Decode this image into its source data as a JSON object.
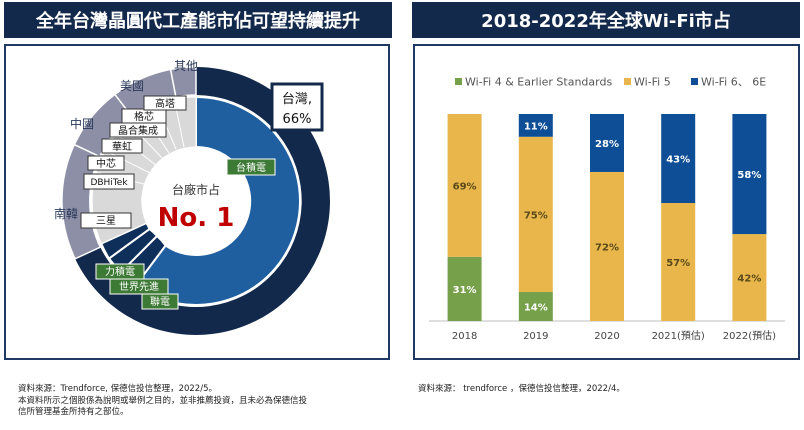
{
  "left_header": "全年台灣晶圓代工產能市佔可望持續提升",
  "right_header": "2018-2022年全球Wi-Fi市占",
  "donut": {
    "center_small": "台廠市占",
    "center_big": "No. 1",
    "outer_segments": [
      {
        "label": "台灣,",
        "label2": "66%",
        "value": 66,
        "color": "#13294b"
      },
      {
        "label": "南韓",
        "value": 17,
        "color": "#8c8fa6"
      },
      {
        "label": "中國",
        "value": 8,
        "color": "#8c8fa6"
      },
      {
        "label": "美國",
        "value": 6,
        "color": "#8c8fa6"
      },
      {
        "label": "其他",
        "value": 3,
        "color": "#8c8fa6"
      }
    ],
    "company_labels": [
      "台積電",
      "力積電",
      "世界先進",
      "聯電",
      "三星",
      "DBHiTek",
      "中芯",
      "華虹",
      "晶合集成",
      "格芯",
      "高塔"
    ],
    "colors": {
      "tsmc": "#1f5fa0",
      "taiwan_other": "#0e2f5a",
      "others_inner": "#d9d9d9",
      "green_tag": "#3d7a35"
    }
  },
  "chart_data": {
    "type": "bar",
    "stacked": true,
    "title": "2018-2022年全球Wi-Fi市占",
    "categories": [
      "2018",
      "2019",
      "2020",
      "2021(預估)",
      "2022(預估)"
    ],
    "series": [
      {
        "name": "Wi-Fi 4 & Earlier Standards",
        "color": "#76a04a",
        "values": [
          31,
          14,
          0,
          0,
          0
        ],
        "labels": [
          "31%",
          "14%",
          "",
          "",
          ""
        ]
      },
      {
        "name": "Wi-Fi 5",
        "color": "#e8b64b",
        "values": [
          69,
          75,
          72,
          57,
          42
        ],
        "labels": [
          "69%",
          "75%",
          "72%",
          "57%",
          "42%"
        ]
      },
      {
        "name": "Wi-Fi 6、 6E",
        "color": "#0e4e96",
        "values": [
          0,
          11,
          28,
          43,
          58
        ],
        "labels": [
          "",
          "11%",
          "28%",
          "43%",
          "58%"
        ]
      }
    ],
    "ylim": [
      0,
      100
    ],
    "legend": "top",
    "xlabel": "",
    "ylabel": ""
  },
  "footnote_left_1": "資料來源：Trendforce, 保德信投信整理，2022/5。",
  "footnote_left_2": "本資料所示之個股係為說明或舉例之目的，並非推薦投資，且未必為保德信投",
  "footnote_left_3": "信所管理基金所持有之部位。",
  "footnote_right": "資料來源： trendforce ，保德信投信整理，2022/4。"
}
